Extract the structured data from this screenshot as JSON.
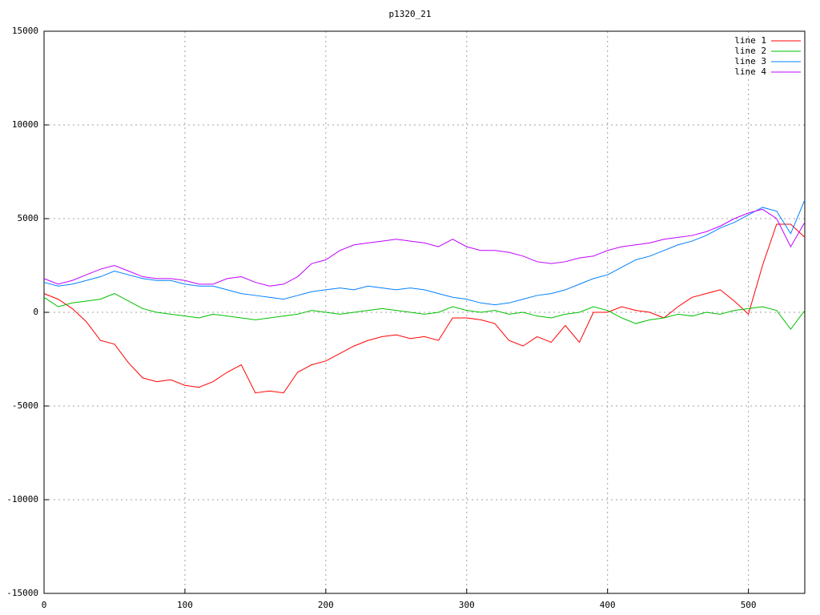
{
  "chart_data": {
    "type": "line",
    "title": "p1320_21",
    "x": [
      0,
      10,
      20,
      30,
      40,
      50,
      60,
      70,
      80,
      90,
      100,
      110,
      120,
      130,
      140,
      150,
      160,
      170,
      180,
      190,
      200,
      210,
      220,
      230,
      240,
      250,
      260,
      270,
      280,
      290,
      300,
      310,
      320,
      330,
      340,
      350,
      360,
      370,
      380,
      390,
      400,
      410,
      420,
      430,
      440,
      450,
      460,
      470,
      480,
      490,
      500,
      510,
      520,
      530,
      540
    ],
    "series": [
      {
        "name": "line 1",
        "color": "#ff0000",
        "values": [
          1000,
          700,
          200,
          -500,
          -1500,
          -1700,
          -2700,
          -3500,
          -3700,
          -3600,
          -3900,
          -4000,
          -3700,
          -3200,
          -2800,
          -4300,
          -4200,
          -4300,
          -3200,
          -2800,
          -2600,
          -2200,
          -1800,
          -1500,
          -1300,
          -1200,
          -1400,
          -1300,
          -1500,
          -300,
          -300,
          -400,
          -600,
          -1500,
          -1800,
          -1300,
          -1600,
          -700,
          -1600,
          0,
          0,
          300,
          100,
          0,
          -300,
          300,
          800,
          1000,
          1200,
          600,
          -100,
          2500,
          4700,
          4700,
          4000
        ]
      },
      {
        "name": "line 2",
        "color": "#00c000",
        "values": [
          800,
          300,
          500,
          600,
          700,
          1000,
          600,
          200,
          0,
          -100,
          -200,
          -300,
          -100,
          -200,
          -300,
          -400,
          -300,
          -200,
          -100,
          100,
          0,
          -100,
          0,
          100,
          200,
          100,
          0,
          -100,
          0,
          300,
          100,
          0,
          100,
          -100,
          0,
          -200,
          -300,
          -100,
          0,
          300,
          100,
          -300,
          -600,
          -400,
          -300,
          -100,
          -200,
          0,
          -100,
          100,
          200,
          300,
          100,
          -900,
          100
        ]
      },
      {
        "name": "line 3",
        "color": "#0080ff",
        "values": [
          1600,
          1400,
          1500,
          1700,
          1900,
          2200,
          2000,
          1800,
          1700,
          1700,
          1500,
          1400,
          1400,
          1200,
          1000,
          900,
          800,
          700,
          900,
          1100,
          1200,
          1300,
          1200,
          1400,
          1300,
          1200,
          1300,
          1200,
          1000,
          800,
          700,
          500,
          400,
          500,
          700,
          900,
          1000,
          1200,
          1500,
          1800,
          2000,
          2400,
          2800,
          3000,
          3300,
          3600,
          3800,
          4100,
          4500,
          4800,
          5200,
          5600,
          5400,
          4200,
          6000
        ]
      },
      {
        "name": "line 4",
        "color": "#c000ff",
        "values": [
          1800,
          1500,
          1700,
          2000,
          2300,
          2500,
          2200,
          1900,
          1800,
          1800,
          1700,
          1500,
          1500,
          1800,
          1900,
          1600,
          1400,
          1500,
          1900,
          2600,
          2800,
          3300,
          3600,
          3700,
          3800,
          3900,
          3800,
          3700,
          3500,
          3900,
          3500,
          3300,
          3300,
          3200,
          3000,
          2700,
          2600,
          2700,
          2900,
          3000,
          3300,
          3500,
          3600,
          3700,
          3900,
          4000,
          4100,
          4300,
          4600,
          5000,
          5300,
          5500,
          5000,
          3500,
          4800
        ]
      }
    ],
    "xlim": [
      0,
      540
    ],
    "xticks": [
      0,
      100,
      200,
      300,
      400,
      500
    ],
    "ylim": [
      -15000,
      15000
    ],
    "yticks": [
      -15000,
      -10000,
      -5000,
      0,
      5000,
      10000,
      15000
    ],
    "grid": true,
    "legend": "top-right"
  }
}
